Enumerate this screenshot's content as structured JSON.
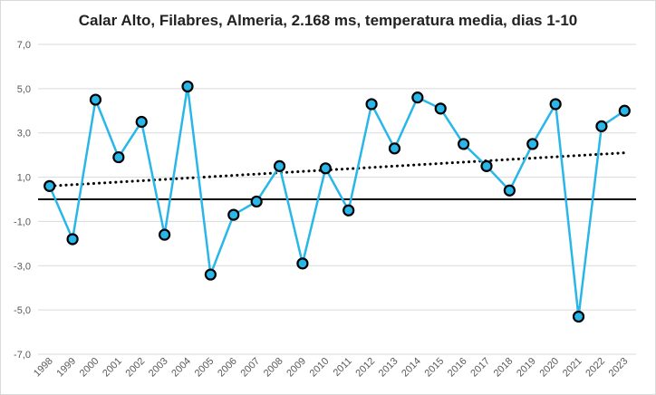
{
  "chart_data": {
    "type": "line",
    "title": "Calar Alto, Filabres, Almeria, 2.168 ms, temperatura media, dias 1-10",
    "xlabel": "",
    "ylabel": "",
    "categories": [
      "1998",
      "1999",
      "2000",
      "2001",
      "2002",
      "2003",
      "2004",
      "2005",
      "2006",
      "2007",
      "2008",
      "2009",
      "2010",
      "2011",
      "2012",
      "2013",
      "2014",
      "2015",
      "2016",
      "2017",
      "2018",
      "2019",
      "2020",
      "2021",
      "2022",
      "2023"
    ],
    "series": [
      {
        "values": [
          0.6,
          -1.8,
          4.5,
          1.9,
          3.5,
          -1.6,
          5.1,
          -3.4,
          -0.7,
          -0.1,
          1.5,
          -2.9,
          1.4,
          -0.5,
          4.3,
          2.3,
          4.6,
          4.1,
          2.5,
          1.5,
          0.4,
          2.5,
          4.3,
          -5.3,
          3.3,
          4.0
        ]
      }
    ],
    "trendline": {
      "style": "dotted",
      "start": 0.6,
      "end": 2.1
    },
    "reference_line": 0,
    "ylim": [
      -7,
      7
    ],
    "yticks": [
      "7,0",
      "5,0",
      "3,0",
      "1,0",
      "-1,0",
      "-3,0",
      "-5,0",
      "-7,0"
    ],
    "grid": true,
    "colors": {
      "line": "#29b6e8",
      "marker_fill": "#29b6e8",
      "marker_edge": "#000000",
      "trend": "#000000",
      "grid": "#d9d9d9"
    }
  }
}
